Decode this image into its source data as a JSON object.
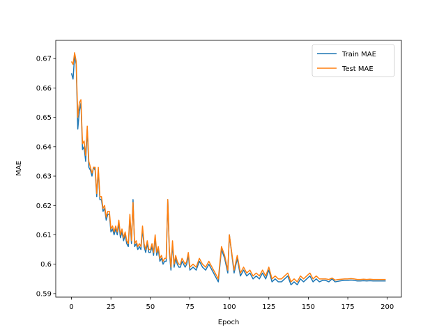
{
  "chart_data": {
    "type": "line",
    "xlabel": "Epoch",
    "ylabel": "MAE",
    "x": [
      0,
      1,
      2,
      3,
      4,
      5,
      6,
      7,
      8,
      9,
      10,
      11,
      12,
      13,
      14,
      15,
      16,
      17,
      18,
      19,
      20,
      21,
      22,
      23,
      24,
      25,
      26,
      27,
      28,
      29,
      30,
      31,
      32,
      33,
      34,
      35,
      36,
      37,
      38,
      39,
      40,
      41,
      42,
      43,
      44,
      45,
      46,
      47,
      48,
      49,
      50,
      51,
      52,
      53,
      54,
      55,
      56,
      57,
      58,
      59,
      60,
      61,
      62,
      63,
      64,
      65,
      66,
      67,
      68,
      69,
      70,
      71,
      72,
      73,
      74,
      75,
      77,
      79,
      81,
      83,
      85,
      87,
      89,
      91,
      93,
      95,
      97,
      99,
      100,
      103,
      105,
      107,
      109,
      111,
      113,
      115,
      117,
      119,
      121,
      123,
      125,
      127,
      129,
      131,
      133,
      135,
      137,
      139,
      141,
      143,
      145,
      147,
      149,
      151,
      153,
      155,
      157,
      159,
      161,
      163,
      165,
      167,
      169,
      171,
      173,
      175,
      177,
      179,
      181,
      183,
      185,
      187,
      189,
      191,
      193,
      195,
      197,
      199
    ],
    "series": [
      {
        "name": "Train MAE",
        "color": "#1f77b4",
        "values": [
          0.665,
          0.663,
          0.671,
          0.668,
          0.646,
          0.652,
          0.655,
          0.639,
          0.64,
          0.635,
          0.646,
          0.633,
          0.632,
          0.63,
          0.633,
          0.632,
          0.623,
          0.632,
          0.622,
          0.622,
          0.618,
          0.619,
          0.615,
          0.617,
          0.617,
          0.611,
          0.612,
          0.61,
          0.612,
          0.61,
          0.614,
          0.609,
          0.611,
          0.608,
          0.61,
          0.607,
          0.606,
          0.616,
          0.607,
          0.622,
          0.606,
          0.607,
          0.605,
          0.606,
          0.605,
          0.612,
          0.606,
          0.604,
          0.607,
          0.604,
          0.604,
          0.606,
          0.603,
          0.609,
          0.603,
          0.605,
          0.601,
          0.602,
          0.6,
          0.601,
          0.601,
          0.622,
          0.604,
          0.598,
          0.607,
          0.599,
          0.602,
          0.6,
          0.599,
          0.599,
          0.601,
          0.6,
          0.599,
          0.6,
          0.603,
          0.598,
          0.599,
          0.598,
          0.601,
          0.599,
          0.598,
          0.6,
          0.598,
          0.596,
          0.594,
          0.605,
          0.602,
          0.597,
          0.61,
          0.597,
          0.602,
          0.596,
          0.598,
          0.596,
          0.597,
          0.595,
          0.596,
          0.595,
          0.597,
          0.595,
          0.598,
          0.594,
          0.595,
          0.594,
          0.594,
          0.595,
          0.596,
          0.593,
          0.594,
          0.593,
          0.595,
          0.594,
          0.595,
          0.596,
          0.594,
          0.595,
          0.594,
          0.5945,
          0.5945,
          0.594,
          0.595,
          0.594,
          0.5942,
          0.5944,
          0.5945,
          0.5945,
          0.5946,
          0.5945,
          0.5943,
          0.5943,
          0.5944,
          0.5943,
          0.5944,
          0.5943,
          0.5943,
          0.5943,
          0.5943,
          0.5943
        ]
      },
      {
        "name": "Test MAE",
        "color": "#ff7f0e",
        "values": [
          0.669,
          0.668,
          0.672,
          0.669,
          0.65,
          0.655,
          0.656,
          0.641,
          0.642,
          0.637,
          0.647,
          0.635,
          0.633,
          0.631,
          0.633,
          0.633,
          0.624,
          0.633,
          0.623,
          0.623,
          0.619,
          0.62,
          0.616,
          0.618,
          0.618,
          0.612,
          0.613,
          0.611,
          0.613,
          0.611,
          0.615,
          0.61,
          0.612,
          0.609,
          0.611,
          0.608,
          0.607,
          0.617,
          0.608,
          0.621,
          0.607,
          0.608,
          0.606,
          0.607,
          0.606,
          0.613,
          0.607,
          0.605,
          0.608,
          0.605,
          0.605,
          0.607,
          0.604,
          0.61,
          0.604,
          0.606,
          0.602,
          0.603,
          0.601,
          0.602,
          0.602,
          0.622,
          0.605,
          0.599,
          0.608,
          0.6,
          0.603,
          0.601,
          0.6,
          0.6,
          0.602,
          0.601,
          0.6,
          0.601,
          0.604,
          0.599,
          0.6,
          0.599,
          0.602,
          0.6,
          0.599,
          0.601,
          0.599,
          0.597,
          0.595,
          0.606,
          0.603,
          0.598,
          0.61,
          0.598,
          0.603,
          0.597,
          0.599,
          0.597,
          0.598,
          0.596,
          0.597,
          0.596,
          0.598,
          0.596,
          0.599,
          0.595,
          0.596,
          0.595,
          0.595,
          0.596,
          0.597,
          0.594,
          0.595,
          0.594,
          0.596,
          0.595,
          0.596,
          0.597,
          0.595,
          0.596,
          0.595,
          0.595,
          0.595,
          0.5948,
          0.5953,
          0.5946,
          0.5948,
          0.5949,
          0.595,
          0.595,
          0.5951,
          0.595,
          0.5948,
          0.5948,
          0.5949,
          0.5948,
          0.5949,
          0.5948,
          0.5948,
          0.5948,
          0.5948,
          0.5948
        ]
      }
    ],
    "xlim": [
      -9.95,
      208.95
    ],
    "xticks": [
      0,
      25,
      50,
      75,
      100,
      125,
      150,
      175,
      200
    ],
    "ylim": [
      0.5888,
      0.6762
    ],
    "yticks": [
      0.59,
      0.6,
      0.61,
      0.62,
      0.63,
      0.64,
      0.65,
      0.66,
      0.67
    ],
    "grid": false,
    "legend": "upper right"
  }
}
